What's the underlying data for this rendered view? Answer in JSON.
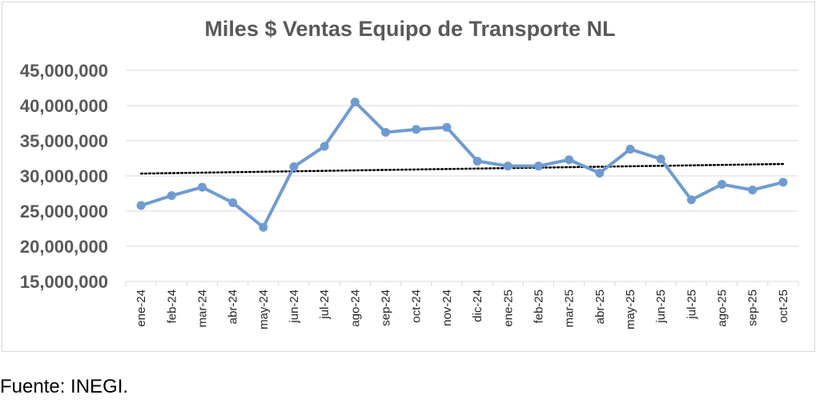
{
  "chart_data": {
    "type": "line",
    "title": "Miles $ Ventas Equipo de Transporte NL",
    "xlabel": "",
    "ylabel": "",
    "categories": [
      "ene-24",
      "feb-24",
      "mar-24",
      "abr-24",
      "may-24",
      "jun-24",
      "jul-24",
      "ago-24",
      "sep-24",
      "oct-24",
      "nov-24",
      "dic-24",
      "ene-25",
      "feb-25",
      "mar-25",
      "abr-25",
      "may-25",
      "jun-25",
      "jul-25",
      "ago-25",
      "sep-25",
      "oct-25"
    ],
    "series": [
      {
        "values": [
          25800000,
          27200000,
          28400000,
          26200000,
          22700000,
          31300000,
          34200000,
          40500000,
          36200000,
          36600000,
          36900000,
          32100000,
          31400000,
          31400000,
          32300000,
          30400000,
          33800000,
          32400000,
          26600000,
          28800000,
          28000000,
          29100000
        ]
      }
    ],
    "trendline": {
      "style": "dotted",
      "type": "linear"
    },
    "ylim": [
      15000000,
      45000000
    ],
    "yticks": [
      "45,000,000",
      "40,000,000",
      "35,000,000",
      "30,000,000",
      "25,000,000",
      "20,000,000",
      "15,000,000"
    ],
    "grid": true,
    "legend": "none",
    "colors": {
      "line": "#6f9bd1",
      "trend": "#000000",
      "grid": "#d9d9d9"
    }
  },
  "source": "Fuente: INEGI."
}
